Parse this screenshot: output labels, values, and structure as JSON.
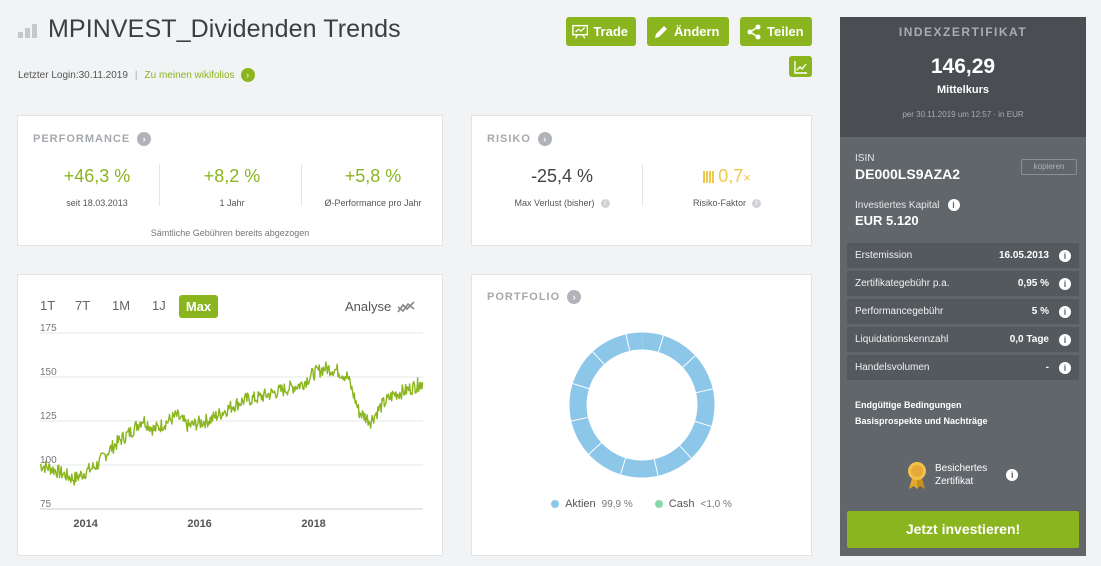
{
  "header": {
    "title": "MPINVEST_Dividenden Trends",
    "last_login": "Letzter Login:30.11.2019",
    "separator": "|",
    "wikifolios_link": "Zu meinen wikifolios",
    "buttons": {
      "trade": "Trade",
      "aendern": "Ändern",
      "teilen": "Teilen"
    }
  },
  "performance": {
    "title": "PERFORMANCE",
    "metrics": [
      {
        "value": "+46,3 %",
        "label": "seit 18.03.2013"
      },
      {
        "value": "+8,2 %",
        "label": "1 Jahr"
      },
      {
        "value": "+5,8 %",
        "label": "Ø-Performance pro Jahr"
      }
    ],
    "note": "Sämtliche Gebühren bereits abgezogen"
  },
  "risk": {
    "title": "RISIKO",
    "max_loss_value": "-25,4 %",
    "max_loss_label": "Max Verlust (bisher)",
    "risk_factor_value": "0,7",
    "risk_factor_suffix": "×",
    "risk_factor_label": "Risiko-Faktor"
  },
  "chart_panel": {
    "timeframes": [
      "1T",
      "7T",
      "1M",
      "1J"
    ],
    "active_timeframe": "Max",
    "analyse_label": "Analyse"
  },
  "chart_data": {
    "type": "line",
    "x_tick_labels": [
      "2014",
      "2016",
      "2018"
    ],
    "y_tick_labels": [
      "175",
      "150",
      "125",
      "100",
      "75"
    ],
    "ylim": [
      75,
      175
    ],
    "xlim": [
      2013.2,
      2019.92
    ],
    "series_color": "#8ab51e",
    "series": [
      {
        "x": [
          2013.2,
          2013.4,
          2013.6,
          2013.8,
          2014.0,
          2014.2,
          2014.4,
          2014.6,
          2014.8,
          2015.0,
          2015.2,
          2015.4,
          2015.6,
          2015.8,
          2016.0,
          2016.2,
          2016.4,
          2016.6,
          2016.8,
          2017.0,
          2017.2,
          2017.4,
          2017.6,
          2017.8,
          2018.0,
          2018.2,
          2018.4,
          2018.6,
          2018.8,
          2019.0,
          2019.2,
          2019.4,
          2019.6,
          2019.8,
          2019.92
        ],
        "values": [
          100,
          98,
          95,
          92,
          96,
          100,
          108,
          114,
          119,
          126,
          120,
          124,
          128,
          122,
          124,
          126,
          130,
          134,
          137,
          138,
          140,
          142,
          144,
          146,
          152,
          155,
          154,
          150,
          130,
          125,
          134,
          140,
          142,
          145,
          147
        ]
      }
    ]
  },
  "portfolio": {
    "title": "PORTFOLIO",
    "legend": [
      {
        "name": "Aktien",
        "value": "99,9 %",
        "color": "#8cc6e8"
      },
      {
        "name": "Cash",
        "value": "<1,0 %",
        "color": "#86d6b0"
      }
    ],
    "donut_shares": [
      99.9,
      0.1
    ]
  },
  "certificate": {
    "title": "INDEXZERTIFIKAT",
    "price": "146,29",
    "price_label": "Mittelkurs",
    "as_of": "per 30.11.2019 um 12:57 · in EUR",
    "isin_label": "ISIN",
    "isin": "DE000LS9AZA2",
    "copy_label": "kopieren",
    "capital_label": "Investiertes Kapital",
    "capital_value": "EUR 5.120",
    "rows": [
      {
        "label": "Erstemission",
        "value": "16.05.2013"
      },
      {
        "label": "Zertifikategebühr p.a.",
        "value": "0,95 %"
      },
      {
        "label": "Performancegebühr",
        "value": "5 %"
      },
      {
        "label": "Liquidationskennzahl",
        "value": "0,0 Tage"
      },
      {
        "label": "Handelsvolumen",
        "value": "-"
      }
    ],
    "link1": "Endgültige Bedingungen",
    "link2": "Basisprospekte und Nachträge",
    "badge_line1": "Besichertes",
    "badge_line2": "Zertifikat",
    "invest_button": "Jetzt investieren!"
  }
}
